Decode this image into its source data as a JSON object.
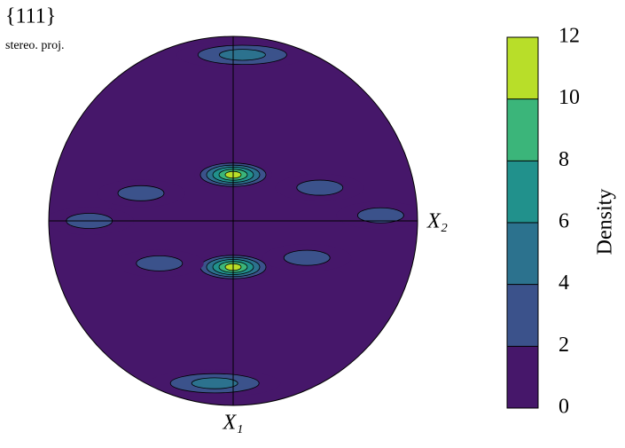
{
  "chart_data": {
    "type": "pole_figure",
    "title": "{111}",
    "subtitle": "stereo. proj.",
    "x_axis_label": "X₂",
    "y_axis_label": "X₁",
    "colorbar_label": "Density",
    "clim": [
      0,
      12
    ],
    "cticks": [
      0,
      2,
      4,
      6,
      8,
      10,
      12
    ],
    "level_colors": [
      "#46176a",
      "#3b528b",
      "#2c728e",
      "#21918c",
      "#3bb57a",
      "#b8de29"
    ],
    "background_value": 1,
    "hotspots": {
      "x": [
        0,
        0,
        -0.5,
        0.47,
        -0.78,
        0.8,
        -0.4,
        0.4,
        0.05,
        -0.1
      ],
      "y": [
        0.25,
        -0.25,
        0.15,
        0.18,
        0,
        0.03,
        -0.23,
        -0.2,
        0.9,
        -0.88
      ],
      "values": [
        12,
        12,
        4,
        4,
        3,
        3,
        3,
        3,
        5,
        5
      ]
    }
  }
}
